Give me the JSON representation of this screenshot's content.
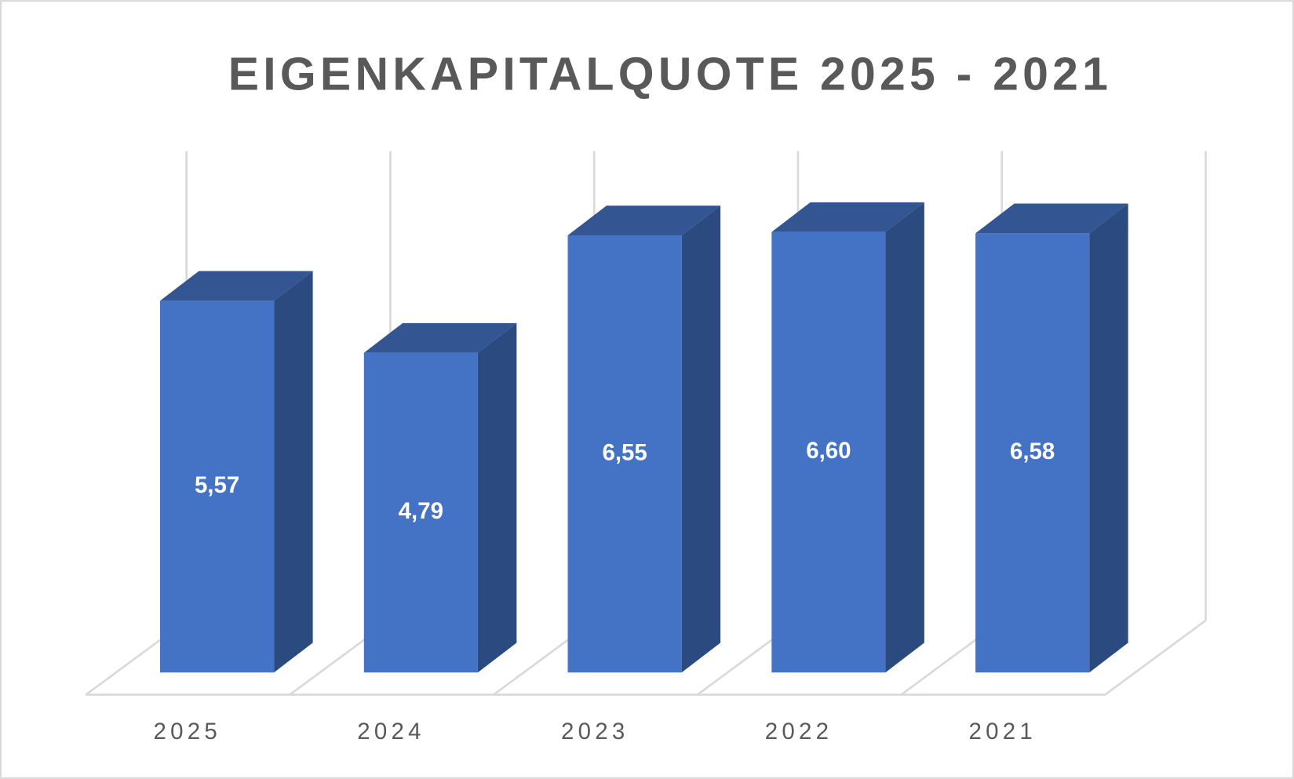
{
  "chart_data": {
    "type": "bar3d",
    "title": "EIGENKAPITALQUOTE 2025 - 2021",
    "categories": [
      "2025",
      "2024",
      "2023",
      "2022",
      "2021"
    ],
    "values": [
      5.57,
      4.79,
      6.55,
      6.6,
      6.58
    ],
    "value_labels": [
      "5,57",
      "4,79",
      "6,55",
      "6,60",
      "6,58"
    ],
    "color": "#4472c4",
    "grid": true
  }
}
